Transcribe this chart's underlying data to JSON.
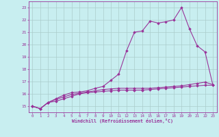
{
  "xlabel": "Windchill (Refroidissement éolien,°C)",
  "background_color": "#c8eef0",
  "grid_color": "#aacccc",
  "line_color": "#993399",
  "xlim": [
    -0.5,
    23.5
  ],
  "ylim": [
    14.5,
    23.5
  ],
  "xticks": [
    0,
    1,
    2,
    3,
    4,
    5,
    6,
    7,
    8,
    9,
    10,
    11,
    12,
    13,
    14,
    15,
    16,
    17,
    18,
    19,
    20,
    21,
    22,
    23
  ],
  "yticks": [
    15,
    16,
    17,
    18,
    19,
    20,
    21,
    22,
    23
  ],
  "series": [
    [
      15.0,
      14.8,
      15.3,
      15.4,
      15.6,
      15.8,
      16.0,
      16.1,
      16.15,
      16.2,
      16.25,
      16.3,
      16.3,
      16.3,
      16.3,
      16.35,
      16.4,
      16.45,
      16.5,
      16.55,
      16.6,
      16.65,
      16.7,
      16.7
    ],
    [
      15.0,
      14.8,
      15.3,
      15.55,
      15.75,
      15.95,
      16.05,
      16.15,
      16.25,
      16.35,
      16.4,
      16.45,
      16.45,
      16.45,
      16.45,
      16.45,
      16.5,
      16.55,
      16.6,
      16.65,
      16.75,
      16.85,
      16.95,
      16.75
    ],
    [
      15.0,
      14.8,
      15.3,
      15.6,
      15.9,
      16.1,
      16.15,
      16.25,
      16.45,
      16.6,
      17.1,
      17.6,
      19.5,
      21.0,
      21.1,
      21.9,
      21.75,
      21.85,
      22.0,
      23.0,
      21.3,
      19.9,
      19.4,
      16.7
    ]
  ]
}
